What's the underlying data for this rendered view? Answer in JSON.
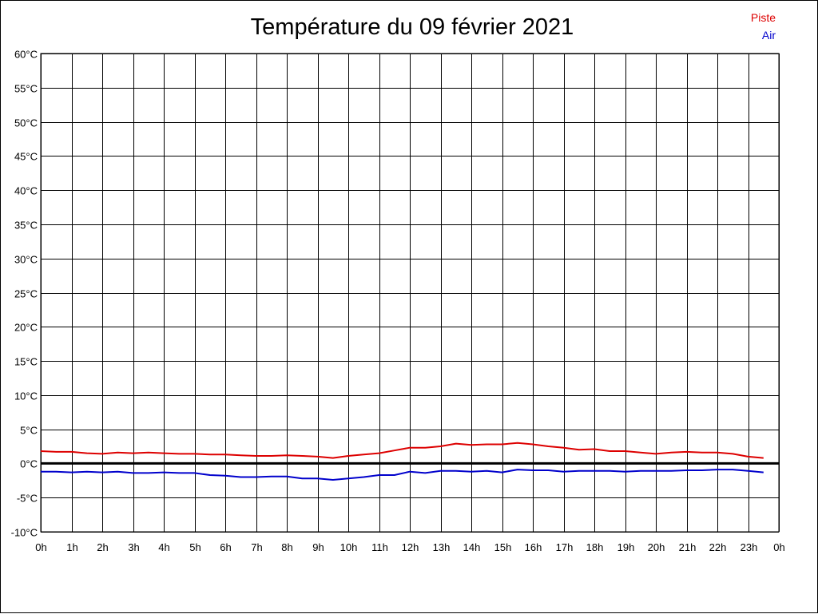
{
  "chart_data": {
    "type": "line",
    "title": "Température du 09 février 2021",
    "ylim": [
      -10,
      60
    ],
    "y_ticks": [
      "60°C",
      "55°C",
      "50°C",
      "45°C",
      "40°C",
      "35°C",
      "30°C",
      "25°C",
      "20°C",
      "15°C",
      "10°C",
      "5°C",
      "0°C",
      "-5°C",
      "-10°C"
    ],
    "y_tick_values": [
      60,
      55,
      50,
      45,
      40,
      35,
      30,
      25,
      20,
      15,
      10,
      5,
      0,
      -5,
      -10
    ],
    "x_ticks": [
      "0h",
      "1h",
      "2h",
      "3h",
      "4h",
      "5h",
      "6h",
      "7h",
      "8h",
      "9h",
      "10h",
      "11h",
      "12h",
      "13h",
      "14h",
      "15h",
      "16h",
      "17h",
      "18h",
      "19h",
      "20h",
      "21h",
      "22h",
      "23h",
      "0h"
    ],
    "xlim": [
      0,
      24
    ],
    "grid": true,
    "legend_position": "top-right",
    "series": [
      {
        "name": "Piste",
        "color": "#dd0000",
        "x": [
          0,
          0.5,
          1,
          1.5,
          2,
          2.5,
          3,
          3.5,
          4,
          4.5,
          5,
          5.5,
          6,
          6.5,
          7,
          7.5,
          8,
          8.5,
          9,
          9.5,
          10,
          10.5,
          11,
          11.5,
          12,
          12.5,
          13,
          13.5,
          14,
          14.5,
          15,
          15.5,
          16,
          16.5,
          17,
          17.5,
          18,
          18.5,
          19,
          19.5,
          20,
          20.5,
          21,
          21.5,
          22,
          22.5,
          23,
          23.5
        ],
        "y": [
          1.8,
          1.7,
          1.7,
          1.5,
          1.4,
          1.6,
          1.5,
          1.6,
          1.5,
          1.4,
          1.4,
          1.3,
          1.3,
          1.2,
          1.1,
          1.1,
          1.2,
          1.1,
          1.0,
          0.8,
          1.1,
          1.3,
          1.5,
          1.9,
          2.3,
          2.3,
          2.5,
          2.9,
          2.7,
          2.8,
          2.8,
          3.0,
          2.8,
          2.5,
          2.3,
          2.0,
          2.1,
          1.8,
          1.8,
          1.6,
          1.4,
          1.6,
          1.7,
          1.6,
          1.6,
          1.4,
          1.0,
          0.8
        ]
      },
      {
        "name": "Air",
        "color": "#0000cc",
        "x": [
          0,
          0.5,
          1,
          1.5,
          2,
          2.5,
          3,
          3.5,
          4,
          4.5,
          5,
          5.5,
          6,
          6.5,
          7,
          7.5,
          8,
          8.5,
          9,
          9.5,
          10,
          10.5,
          11,
          11.5,
          12,
          12.5,
          13,
          13.5,
          14,
          14.5,
          15,
          15.5,
          16,
          16.5,
          17,
          17.5,
          18,
          18.5,
          19,
          19.5,
          20,
          20.5,
          21,
          21.5,
          22,
          22.5,
          23,
          23.5
        ],
        "y": [
          -1.2,
          -1.2,
          -1.3,
          -1.2,
          -1.3,
          -1.2,
          -1.4,
          -1.4,
          -1.3,
          -1.4,
          -1.4,
          -1.7,
          -1.8,
          -2.0,
          -2.0,
          -1.9,
          -1.9,
          -2.2,
          -2.2,
          -2.4,
          -2.2,
          -2.0,
          -1.7,
          -1.7,
          -1.2,
          -1.4,
          -1.1,
          -1.1,
          -1.2,
          -1.1,
          -1.3,
          -0.9,
          -1.0,
          -1.0,
          -1.2,
          -1.1,
          -1.1,
          -1.1,
          -1.2,
          -1.1,
          -1.1,
          -1.1,
          -1.0,
          -1.0,
          -0.9,
          -0.9,
          -1.1,
          -1.3
        ]
      }
    ]
  }
}
